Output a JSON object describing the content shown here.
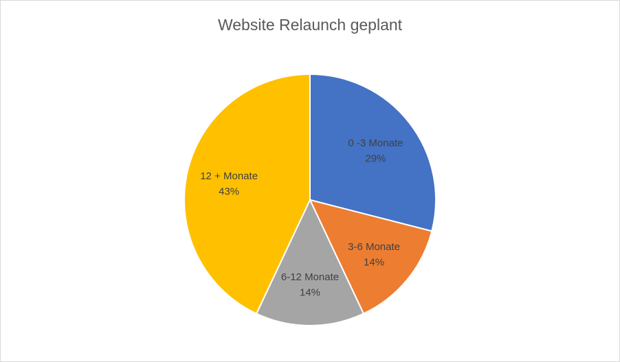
{
  "chart_data": {
    "type": "pie",
    "title": "Website Relaunch geplant",
    "categories": [
      "0 -3 Monate",
      "3-6 Monate",
      "6-12 Monate",
      "12 + Monate"
    ],
    "values": [
      29,
      14,
      14,
      43
    ],
    "value_labels": [
      "29%",
      "14%",
      "14%",
      "43%"
    ],
    "colors": [
      "#4472c4",
      "#ed7d31",
      "#a5a5a5",
      "#ffc000"
    ]
  }
}
